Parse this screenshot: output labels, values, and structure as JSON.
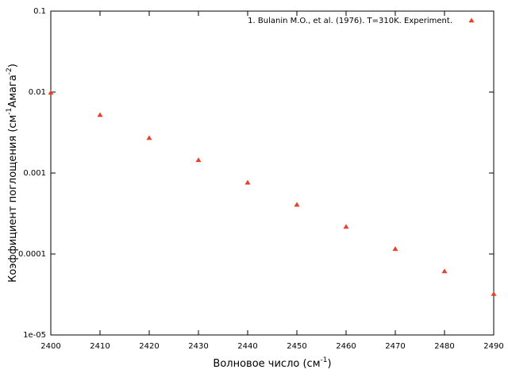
{
  "chart_data": {
    "type": "scatter",
    "xlabel": [
      "Волновое число (см",
      "-1",
      ")"
    ],
    "ylabel": [
      "Коэффициент поглощения (см",
      "-1",
      "Амага",
      "-2",
      ")"
    ],
    "x": [
      2400,
      2410,
      2420,
      2430,
      2440,
      2450,
      2460,
      2470,
      2480,
      2490
    ],
    "series": [
      {
        "name": "1. Bulanin M.O., et al. (1976). T=310K. Experiment.",
        "color": "#e8402a",
        "values": [
          0.0098,
          0.0052,
          0.0027,
          0.00144,
          0.00076,
          0.000405,
          0.000216,
          0.000115,
          6.1e-05,
          3.2e-05
        ]
      }
    ],
    "xlim": [
      2400,
      2490
    ],
    "xticks": [
      2400,
      2410,
      2420,
      2430,
      2440,
      2450,
      2460,
      2470,
      2480,
      2490
    ],
    "ylim": [
      1e-05,
      0.1
    ],
    "yticks": [
      0.1,
      0.01,
      0.001,
      0.0001,
      {
        "value": 1e-05,
        "label": "1e-05"
      }
    ],
    "ylog": true,
    "grid": false,
    "legend": "top-right"
  }
}
